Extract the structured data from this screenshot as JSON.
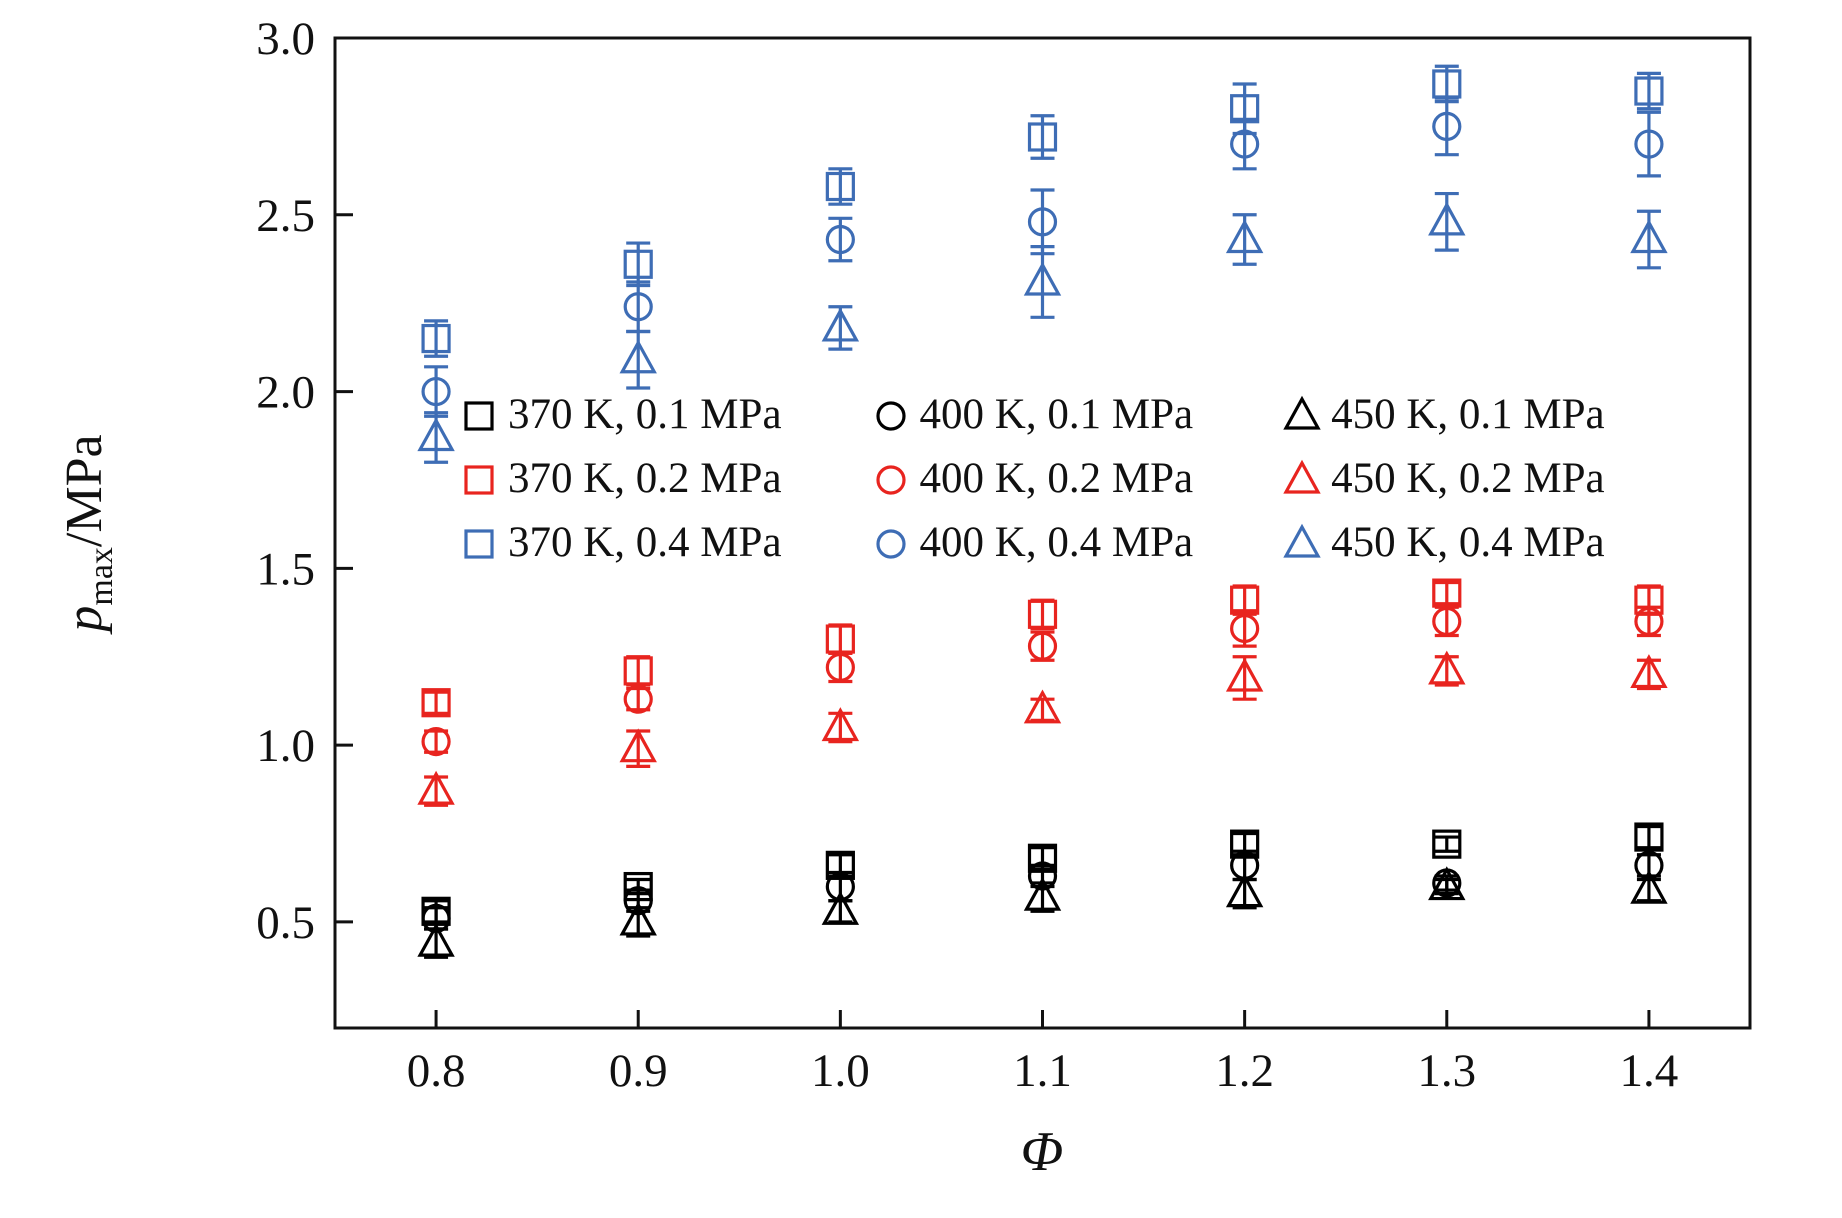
{
  "chart_data": {
    "type": "scatter",
    "title": "",
    "xlabel": "Φ",
    "ylabel_main": "p",
    "ylabel_sub": "max",
    "ylabel_unit": "/MPa",
    "xlim": [
      0.75,
      1.45
    ],
    "ylim": [
      0.2,
      3.0
    ],
    "xticks": [
      0.8,
      0.9,
      1.0,
      1.1,
      1.2,
      1.3,
      1.4
    ],
    "yticks": [
      0.5,
      1.0,
      1.5,
      2.0,
      2.5,
      3.0
    ],
    "grid": false,
    "legend_position": "inside, upper-middle, 3 columns by temperature",
    "x": [
      0.8,
      0.9,
      1.0,
      1.1,
      1.2,
      1.3,
      1.4
    ],
    "colors": {
      "black": "#000000",
      "red": "#e8241f",
      "blue": "#3e6db5"
    },
    "series": [
      {
        "name": "370 K, 0.1 MPa",
        "marker": "square",
        "color": "black",
        "values": [
          0.53,
          0.6,
          0.66,
          0.68,
          0.72,
          0.72,
          0.74
        ],
        "errors": [
          0.03,
          0.02,
          0.03,
          0.03,
          0.03,
          0.02,
          0.03
        ]
      },
      {
        "name": "370 K, 0.2 MPa",
        "marker": "square",
        "color": "red",
        "values": [
          1.12,
          1.21,
          1.3,
          1.37,
          1.41,
          1.43,
          1.41
        ],
        "errors": [
          0.03,
          0.04,
          0.04,
          0.04,
          0.04,
          0.03,
          0.04
        ]
      },
      {
        "name": "370 K, 0.4 MPa",
        "marker": "square",
        "color": "blue",
        "values": [
          2.15,
          2.36,
          2.58,
          2.72,
          2.8,
          2.87,
          2.85
        ],
        "errors": [
          0.05,
          0.06,
          0.05,
          0.06,
          0.07,
          0.05,
          0.05
        ]
      },
      {
        "name": "400 K, 0.1 MPa",
        "marker": "circle",
        "color": "black",
        "values": [
          0.51,
          0.56,
          0.6,
          0.63,
          0.66,
          0.61,
          0.66
        ],
        "errors": [
          0.03,
          0.03,
          0.04,
          0.03,
          0.04,
          0.02,
          0.03
        ]
      },
      {
        "name": "400 K, 0.2 MPa",
        "marker": "circle",
        "color": "red",
        "values": [
          1.01,
          1.13,
          1.22,
          1.28,
          1.33,
          1.35,
          1.35
        ],
        "errors": [
          0.03,
          0.03,
          0.04,
          0.04,
          0.05,
          0.04,
          0.04
        ]
      },
      {
        "name": "400 K, 0.4 MPa",
        "marker": "circle",
        "color": "blue",
        "values": [
          2.0,
          2.24,
          2.43,
          2.48,
          2.7,
          2.75,
          2.7
        ],
        "errors": [
          0.07,
          0.07,
          0.06,
          0.09,
          0.07,
          0.08,
          0.09
        ]
      },
      {
        "name": "450 K, 0.1 MPa",
        "marker": "triangle",
        "color": "black",
        "values": [
          0.44,
          0.5,
          0.53,
          0.57,
          0.58,
          0.6,
          0.59
        ],
        "errors": [
          0.04,
          0.04,
          0.03,
          0.04,
          0.04,
          0.02,
          0.03
        ]
      },
      {
        "name": "450 K, 0.2 MPa",
        "marker": "triangle",
        "color": "red",
        "values": [
          0.87,
          0.99,
          1.05,
          1.1,
          1.19,
          1.21,
          1.2
        ],
        "errors": [
          0.04,
          0.05,
          0.04,
          0.03,
          0.06,
          0.04,
          0.04
        ]
      },
      {
        "name": "450 K, 0.4 MPa",
        "marker": "triangle",
        "color": "blue",
        "values": [
          1.87,
          2.09,
          2.18,
          2.31,
          2.43,
          2.48,
          2.43
        ],
        "errors": [
          0.07,
          0.08,
          0.06,
          0.1,
          0.07,
          0.08,
          0.08
        ]
      }
    ]
  }
}
